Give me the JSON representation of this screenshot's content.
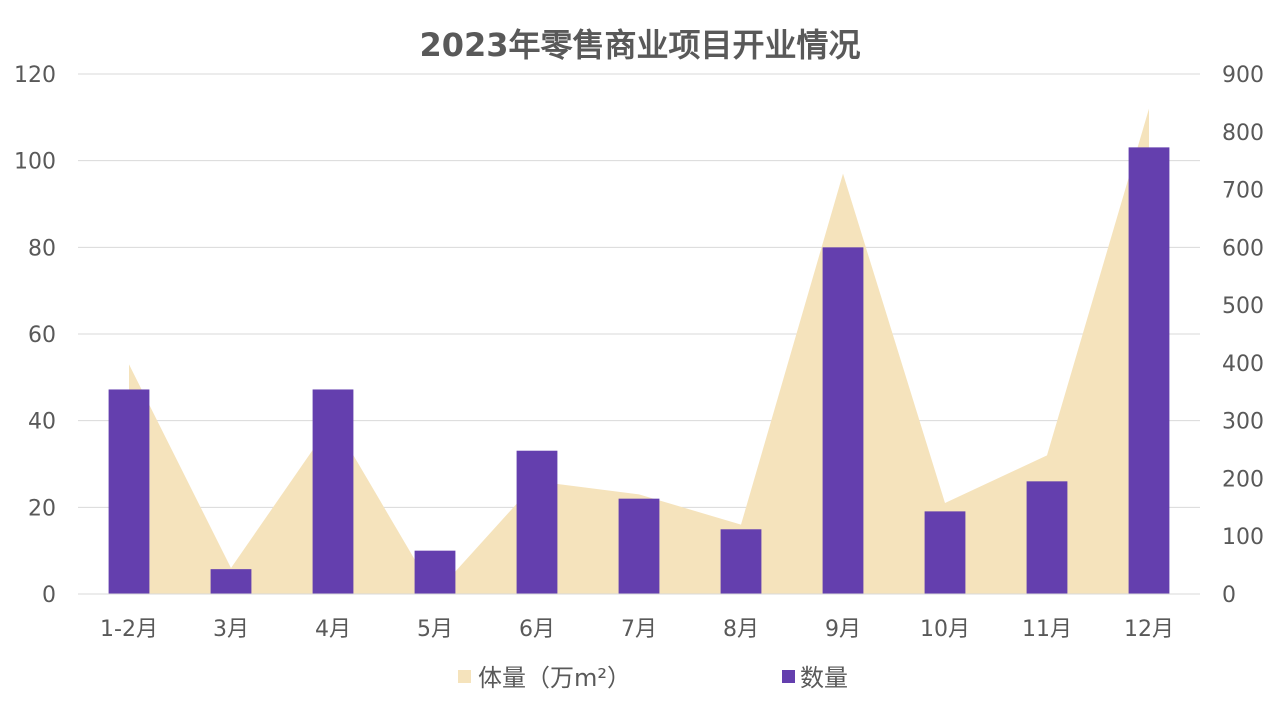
{
  "chart_data": {
    "type": "bar",
    "title": "2023年零售商业项目开业情况",
    "categories": [
      "1-2月",
      "3月",
      "4月",
      "5月",
      "6月",
      "7月",
      "8月",
      "9月",
      "10月",
      "11月",
      "12月"
    ],
    "series": [
      {
        "name": "体量（万m²）",
        "type": "area",
        "axis": "left",
        "color": "#f5e3bc",
        "values": [
          53,
          6,
          40,
          0,
          26,
          23,
          16,
          97,
          21,
          32,
          112
        ]
      },
      {
        "name": "数量",
        "type": "bar",
        "axis": "right",
        "color": "#643fae",
        "values": [
          354,
          43,
          354,
          75,
          248,
          165,
          112,
          600,
          143,
          195,
          773
        ]
      }
    ],
    "y_left": {
      "range": [
        0,
        120
      ],
      "ticks": [
        "0",
        "20",
        "40",
        "60",
        "80",
        "100",
        "120"
      ]
    },
    "y_right": {
      "range": [
        0,
        900
      ],
      "ticks": [
        "0",
        "100",
        "200",
        "300",
        "400",
        "500",
        "600",
        "700",
        "800",
        "900"
      ]
    },
    "grid": true,
    "legend_position": "bottom"
  }
}
